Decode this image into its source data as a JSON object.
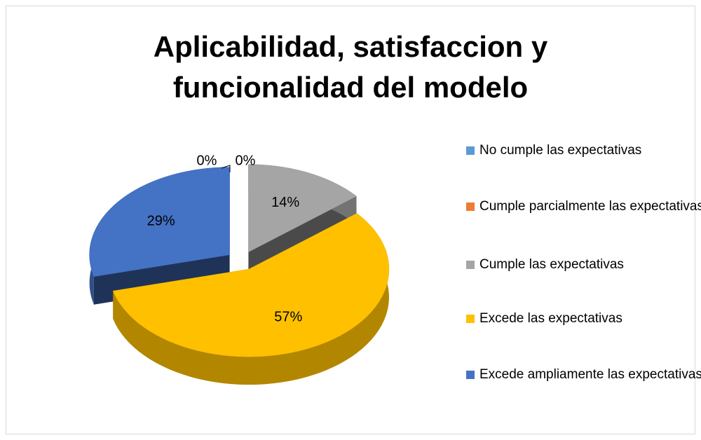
{
  "chart_data": {
    "type": "pie",
    "title": "Aplicabilidad, satisfaccion y funcionalidad del modelo",
    "categories": [
      "No cumple las expectativas",
      "Cumple parcialmente las expectativas",
      "Cumple las expectativas",
      "Excede las expectativas",
      "Excede ampliamente las expectativas"
    ],
    "values": [
      0,
      0,
      14,
      57,
      29
    ],
    "value_labels": [
      "0%",
      "0%",
      "14%",
      "57%",
      "29%"
    ],
    "colors": [
      "#5b9bd5",
      "#ed7d31",
      "#a5a5a5",
      "#ffc000",
      "#4472c4"
    ],
    "legend": "right"
  }
}
